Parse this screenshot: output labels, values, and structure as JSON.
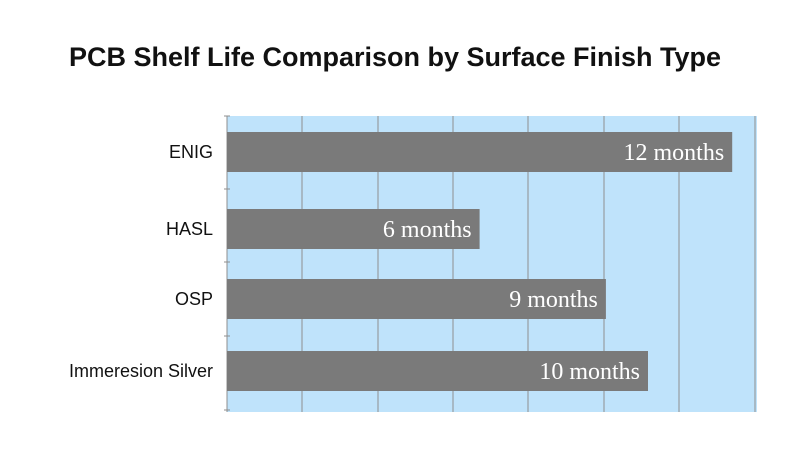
{
  "chart_data": {
    "type": "bar",
    "orientation": "horizontal",
    "title": "PCB Shelf Life Comparison by Surface Finish Type",
    "xlabel": "",
    "ylabel": "",
    "categories": [
      "ENIG",
      "HASL",
      "OSP",
      "Immeresion Silver"
    ],
    "series": [
      {
        "values": [
          12,
          6,
          9,
          10
        ],
        "data_labels": [
          "12 months",
          "6 months",
          "9 months",
          "10 months"
        ]
      }
    ],
    "grid": true,
    "legend": "none"
  },
  "colors": {
    "plot_background": "#bfe3fb",
    "bar": "#7a7a7a",
    "grid": "#8f8f8f"
  }
}
